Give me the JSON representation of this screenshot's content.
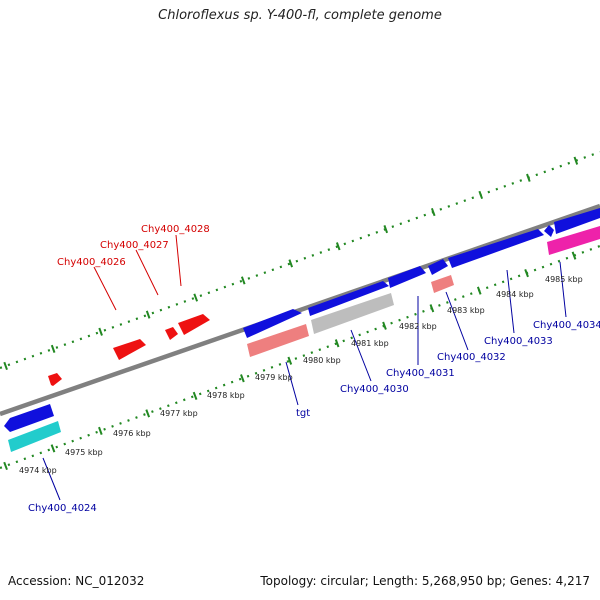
{
  "title": "Chloroflexus sp. Y-400-fl, complete genome",
  "footer": {
    "accession": "Accession: NC_012032",
    "summary": "Topology: circular; Length: 5,268,950 bp; Genes: 4,217"
  },
  "scale_labels": [
    "4974 kbp",
    "4975 kbp",
    "4976 kbp",
    "4977 kbp",
    "4978 kbp",
    "4979 kbp",
    "4980 kbp",
    "4981 kbp",
    "4982 kbp",
    "4983 kbp",
    "4984 kbp",
    "4985 kbp"
  ],
  "gene_labels": {
    "top": [
      "Chy400_4026",
      "Chy400_4027",
      "Chy400_4028"
    ],
    "bottom": [
      "Chy400_4024",
      "tgt",
      "Chy400_4030",
      "Chy400_4031",
      "Chy400_4032",
      "Chy400_4033",
      "Chy400_4034"
    ]
  },
  "colors": {
    "top_label": "#d40000",
    "bottom_label": "#0000a0",
    "cds_forward": "#1010dd",
    "rrna": "#ee1111",
    "trna_cyan": "#22cccc",
    "pink": "#ee7f7f",
    "gray": "#bdbdbd",
    "magenta": "#ee22aa",
    "backbone": "#808080",
    "ticks": "#228822"
  }
}
